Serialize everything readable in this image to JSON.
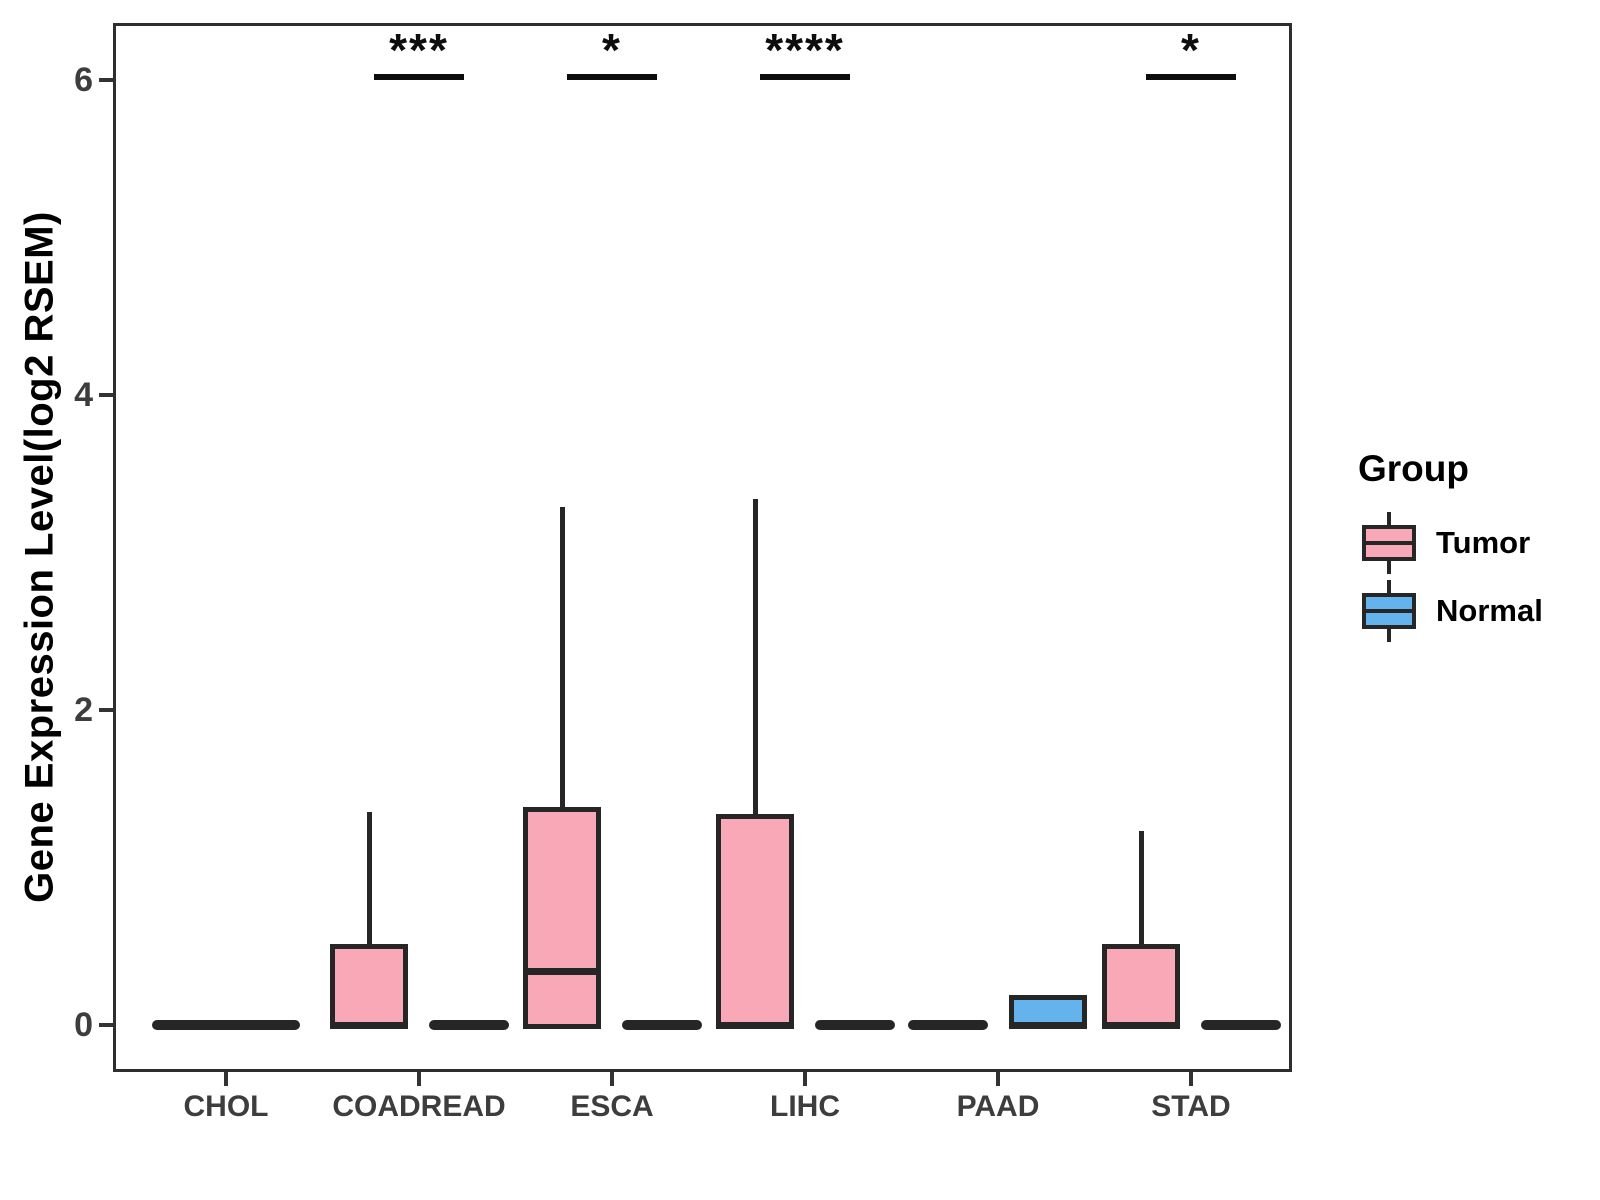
{
  "axis": {
    "y_title": "Gene Expression Level(log2 RSEM)",
    "y_tick_labels": [
      "6",
      "4",
      "2",
      "0"
    ],
    "x_tick_labels": [
      "CHOL",
      "COADREAD",
      "ESCA",
      "LIHC",
      "PAAD",
      "STAD"
    ]
  },
  "legend": {
    "title": "Group",
    "entries": [
      {
        "label": "Tumor",
        "color": "#F9A8B8"
      },
      {
        "label": "Normal",
        "color": "#65B3EC"
      }
    ]
  },
  "colors": {
    "tumor_fill": "#F9A8B8",
    "normal_fill": "#65B3EC",
    "line": "#262626",
    "axis_text": "#3d3d3d"
  },
  "chart_data": {
    "type": "boxplot",
    "title": "",
    "xlabel": "",
    "ylabel": "Gene Expression Level(log2 RSEM)",
    "ylim": [
      -0.3,
      6.45
    ],
    "y_ticks": [
      0,
      2,
      4,
      6
    ],
    "grid": false,
    "legend_position": "right",
    "legend_title": "Group",
    "categories": [
      "CHOL",
      "COADREAD",
      "ESCA",
      "LIHC",
      "PAAD",
      "STAD"
    ],
    "series": [
      {
        "name": "Tumor",
        "color": "#F9A8B8",
        "boxes": [
          {
            "category": "CHOL",
            "whisker_low": 0,
            "q1": 0,
            "median": 0,
            "q3": 0,
            "whisker_high": 0
          },
          {
            "category": "COADREAD",
            "whisker_low": 0,
            "q1": 0,
            "median": 0,
            "q3": 0.5,
            "whisker_high": 1.35
          },
          {
            "category": "ESCA",
            "whisker_low": 0,
            "q1": 0,
            "median": 0.34,
            "q3": 1.37,
            "whisker_high": 3.29
          },
          {
            "category": "LIHC",
            "whisker_low": 0,
            "q1": 0,
            "median": 0,
            "q3": 1.33,
            "whisker_high": 3.34
          },
          {
            "category": "PAAD",
            "whisker_low": 0,
            "q1": 0,
            "median": 0,
            "q3": 0,
            "whisker_high": 0
          },
          {
            "category": "STAD",
            "whisker_low": 0,
            "q1": 0,
            "median": 0,
            "q3": 0.5,
            "whisker_high": 1.23
          }
        ]
      },
      {
        "name": "Normal",
        "color": "#65B3EC",
        "boxes": [
          {
            "category": "CHOL",
            "whisker_low": 0,
            "q1": 0,
            "median": 0,
            "q3": 0,
            "whisker_high": 0
          },
          {
            "category": "COADREAD",
            "whisker_low": 0,
            "q1": 0,
            "median": 0,
            "q3": 0,
            "whisker_high": 0
          },
          {
            "category": "ESCA",
            "whisker_low": 0,
            "q1": 0,
            "median": 0,
            "q3": 0,
            "whisker_high": 0
          },
          {
            "category": "LIHC",
            "whisker_low": 0,
            "q1": 0,
            "median": 0,
            "q3": 0,
            "whisker_high": 0
          },
          {
            "category": "PAAD",
            "whisker_low": 0,
            "q1": 0,
            "median": 0,
            "q3": 0.18,
            "whisker_high": 0.18
          },
          {
            "category": "STAD",
            "whisker_low": 0,
            "q1": 0,
            "median": 0,
            "q3": 0,
            "whisker_high": 0
          }
        ]
      }
    ],
    "significance": [
      {
        "category": "COADREAD",
        "label": "***"
      },
      {
        "category": "ESCA",
        "label": "*"
      },
      {
        "category": "LIHC",
        "label": "****"
      },
      {
        "category": "STAD",
        "label": "*"
      }
    ]
  }
}
